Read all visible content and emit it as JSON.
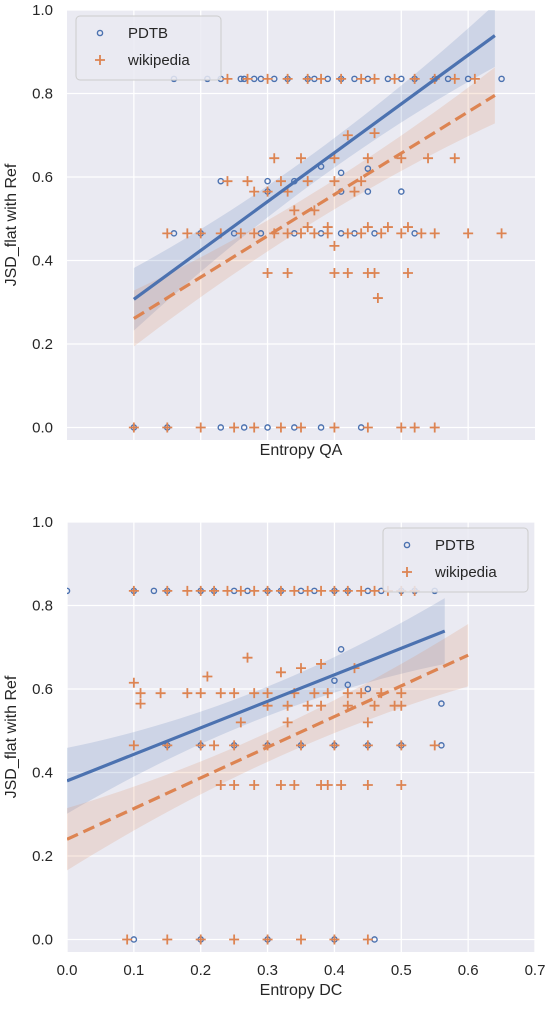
{
  "colors": {
    "pdtb": "#4c72b0",
    "wikipedia": "#dd8452",
    "panel_bg": "#eaeaf2",
    "grid": "#ffffff",
    "text": "#262626"
  },
  "chart_data": [
    {
      "type": "scatter",
      "title": "",
      "xlabel": "Entropy QA",
      "ylabel": "JSD_flat with Ref",
      "xlim": [
        0.0,
        0.7
      ],
      "ylim": [
        -0.03,
        1.0
      ],
      "x_ticks": [
        0.1,
        0.2,
        0.3,
        0.4,
        0.5,
        0.6
      ],
      "x_tick_labels_shown": false,
      "y_ticks": [
        0.0,
        0.2,
        0.4,
        0.6,
        0.8,
        1.0
      ],
      "y_tick_labels": [
        "0.0",
        "0.2",
        "0.4",
        "0.6",
        "0.8",
        "1.0"
      ],
      "grid": true,
      "legend_position": "top-left",
      "series": [
        {
          "name": "PDTB",
          "marker": "circle",
          "x": [
            0.16,
            0.21,
            0.23,
            0.26,
            0.265,
            0.28,
            0.29,
            0.31,
            0.33,
            0.36,
            0.37,
            0.39,
            0.41,
            0.43,
            0.45,
            0.48,
            0.5,
            0.52,
            0.55,
            0.57,
            0.6,
            0.65,
            0.16,
            0.2,
            0.25,
            0.29,
            0.34,
            0.38,
            0.41,
            0.43,
            0.46,
            0.52,
            0.3,
            0.34,
            0.41,
            0.45,
            0.23,
            0.3,
            0.38,
            0.41,
            0.45,
            0.5,
            0.1,
            0.15,
            0.23,
            0.265,
            0.3,
            0.34,
            0.38,
            0.44
          ],
          "y": [
            0.835,
            0.835,
            0.835,
            0.835,
            0.835,
            0.835,
            0.835,
            0.835,
            0.835,
            0.835,
            0.835,
            0.835,
            0.835,
            0.835,
            0.835,
            0.835,
            0.835,
            0.835,
            0.835,
            0.835,
            0.835,
            0.835,
            0.465,
            0.465,
            0.465,
            0.465,
            0.465,
            0.465,
            0.465,
            0.465,
            0.465,
            0.465,
            0.59,
            0.59,
            0.565,
            0.565,
            0.59,
            0.565,
            0.625,
            0.61,
            0.62,
            0.565,
            0.0,
            0.0,
            0.0,
            0.0,
            0.0,
            0.0,
            0.0,
            0.0
          ],
          "fit": {
            "intercept": 0.19,
            "slope": 1.17,
            "x_range": [
              0.1,
              0.64
            ]
          }
        },
        {
          "name": "wikipedia",
          "marker": "plus",
          "x": [
            0.24,
            0.27,
            0.3,
            0.33,
            0.36,
            0.38,
            0.41,
            0.44,
            0.46,
            0.49,
            0.52,
            0.55,
            0.58,
            0.61,
            0.31,
            0.35,
            0.4,
            0.45,
            0.5,
            0.54,
            0.58,
            0.42,
            0.46,
            0.15,
            0.18,
            0.2,
            0.23,
            0.26,
            0.28,
            0.31,
            0.33,
            0.35,
            0.37,
            0.39,
            0.42,
            0.44,
            0.47,
            0.5,
            0.53,
            0.55,
            0.6,
            0.65,
            0.24,
            0.27,
            0.32,
            0.36,
            0.4,
            0.44,
            0.28,
            0.3,
            0.33,
            0.43,
            0.36,
            0.39,
            0.45,
            0.48,
            0.51,
            0.4,
            0.3,
            0.33,
            0.4,
            0.42,
            0.45,
            0.46,
            0.51,
            0.34,
            0.37,
            0.1,
            0.15,
            0.2,
            0.25,
            0.28,
            0.32,
            0.35,
            0.4,
            0.45,
            0.5,
            0.52,
            0.55
          ],
          "y": [
            0.835,
            0.835,
            0.835,
            0.835,
            0.835,
            0.835,
            0.835,
            0.835,
            0.835,
            0.835,
            0.835,
            0.835,
            0.835,
            0.835,
            0.645,
            0.645,
            0.645,
            0.645,
            0.645,
            0.645,
            0.645,
            0.7,
            0.705,
            0.465,
            0.465,
            0.465,
            0.465,
            0.465,
            0.465,
            0.465,
            0.465,
            0.465,
            0.465,
            0.465,
            0.465,
            0.465,
            0.465,
            0.465,
            0.465,
            0.465,
            0.465,
            0.465,
            0.59,
            0.59,
            0.59,
            0.59,
            0.59,
            0.59,
            0.565,
            0.565,
            0.565,
            0.565,
            0.48,
            0.48,
            0.48,
            0.48,
            0.48,
            0.435,
            0.37,
            0.37,
            0.37,
            0.37,
            0.37,
            0.37,
            0.37,
            0.52,
            0.52,
            0.0,
            0.0,
            0.0,
            0.0,
            0.0,
            0.0,
            0.0,
            0.0,
            0.0,
            0.0,
            0.0,
            0.0
          ],
          "extra_points": [
            [
              0.465,
              0.31
            ]
          ],
          "fit": {
            "intercept": 0.162,
            "slope": 0.99,
            "x_range": [
              0.1,
              0.64
            ]
          }
        }
      ]
    },
    {
      "type": "scatter",
      "title": "",
      "xlabel": "Entropy DC",
      "ylabel": "JSD_flat with Ref",
      "xlim": [
        0.0,
        0.7
      ],
      "ylim": [
        -0.03,
        1.0
      ],
      "x_ticks": [
        0.0,
        0.1,
        0.2,
        0.3,
        0.4,
        0.5,
        0.6,
        0.7
      ],
      "x_tick_labels": [
        "0.0",
        "0.1",
        "0.2",
        "0.3",
        "0.4",
        "0.5",
        "0.6",
        "0.7"
      ],
      "y_ticks": [
        0.0,
        0.2,
        0.4,
        0.6,
        0.8,
        1.0
      ],
      "y_tick_labels": [
        "0.0",
        "0.2",
        "0.4",
        "0.6",
        "0.8",
        "1.0"
      ],
      "grid": true,
      "legend_position": "top-right",
      "series": [
        {
          "name": "PDTB",
          "marker": "circle",
          "x": [
            0.0,
            0.1,
            0.13,
            0.15,
            0.2,
            0.22,
            0.25,
            0.27,
            0.3,
            0.32,
            0.35,
            0.37,
            0.4,
            0.42,
            0.45,
            0.47,
            0.5,
            0.52,
            0.55,
            0.15,
            0.2,
            0.25,
            0.3,
            0.35,
            0.4,
            0.45,
            0.5,
            0.56,
            0.4,
            0.41,
            0.42,
            0.45,
            0.56,
            0.1,
            0.2,
            0.3,
            0.4,
            0.46
          ],
          "y": [
            0.835,
            0.835,
            0.835,
            0.835,
            0.835,
            0.835,
            0.835,
            0.835,
            0.835,
            0.835,
            0.835,
            0.835,
            0.835,
            0.835,
            0.835,
            0.835,
            0.835,
            0.835,
            0.835,
            0.465,
            0.465,
            0.465,
            0.465,
            0.465,
            0.465,
            0.465,
            0.465,
            0.465,
            0.62,
            0.695,
            0.61,
            0.6,
            0.565,
            0.0,
            0.0,
            0.0,
            0.0,
            0.0
          ],
          "fit": {
            "intercept": 0.38,
            "slope": 0.635,
            "x_range": [
              0.0,
              0.565
            ]
          }
        },
        {
          "name": "wikipedia",
          "marker": "plus",
          "x": [
            0.1,
            0.15,
            0.18,
            0.2,
            0.22,
            0.24,
            0.26,
            0.28,
            0.3,
            0.32,
            0.34,
            0.36,
            0.38,
            0.4,
            0.42,
            0.44,
            0.46,
            0.48,
            0.5,
            0.52,
            0.1,
            0.11,
            0.14,
            0.18,
            0.2,
            0.23,
            0.25,
            0.28,
            0.3,
            0.34,
            0.37,
            0.39,
            0.42,
            0.44,
            0.47,
            0.5,
            0.1,
            0.15,
            0.2,
            0.22,
            0.25,
            0.3,
            0.35,
            0.4,
            0.45,
            0.5,
            0.55,
            0.3,
            0.33,
            0.36,
            0.38,
            0.42,
            0.46,
            0.49,
            0.5,
            0.21,
            0.32,
            0.35,
            0.38,
            0.43,
            0.27,
            0.26,
            0.33,
            0.45,
            0.11,
            0.23,
            0.25,
            0.28,
            0.32,
            0.34,
            0.38,
            0.39,
            0.41,
            0.45,
            0.5,
            0.09,
            0.15,
            0.2,
            0.25,
            0.3,
            0.35,
            0.4,
            0.45
          ],
          "y": [
            0.835,
            0.835,
            0.835,
            0.835,
            0.835,
            0.835,
            0.835,
            0.835,
            0.835,
            0.835,
            0.835,
            0.835,
            0.835,
            0.835,
            0.835,
            0.835,
            0.835,
            0.835,
            0.835,
            0.835,
            0.615,
            0.59,
            0.59,
            0.59,
            0.59,
            0.59,
            0.59,
            0.59,
            0.59,
            0.59,
            0.59,
            0.59,
            0.59,
            0.59,
            0.59,
            0.59,
            0.465,
            0.465,
            0.465,
            0.465,
            0.465,
            0.465,
            0.465,
            0.465,
            0.465,
            0.465,
            0.465,
            0.56,
            0.56,
            0.56,
            0.56,
            0.56,
            0.56,
            0.56,
            0.56,
            0.63,
            0.64,
            0.65,
            0.66,
            0.65,
            0.675,
            0.52,
            0.52,
            0.52,
            0.565,
            0.37,
            0.37,
            0.37,
            0.37,
            0.37,
            0.37,
            0.37,
            0.37,
            0.37,
            0.37,
            0.0,
            0.0,
            0.0,
            0.0,
            0.0,
            0.0,
            0.0,
            0.0
          ],
          "extra_points": [],
          "fit": {
            "intercept": 0.24,
            "slope": 0.735,
            "x_range": [
              0.0,
              0.6
            ]
          }
        }
      ]
    }
  ]
}
